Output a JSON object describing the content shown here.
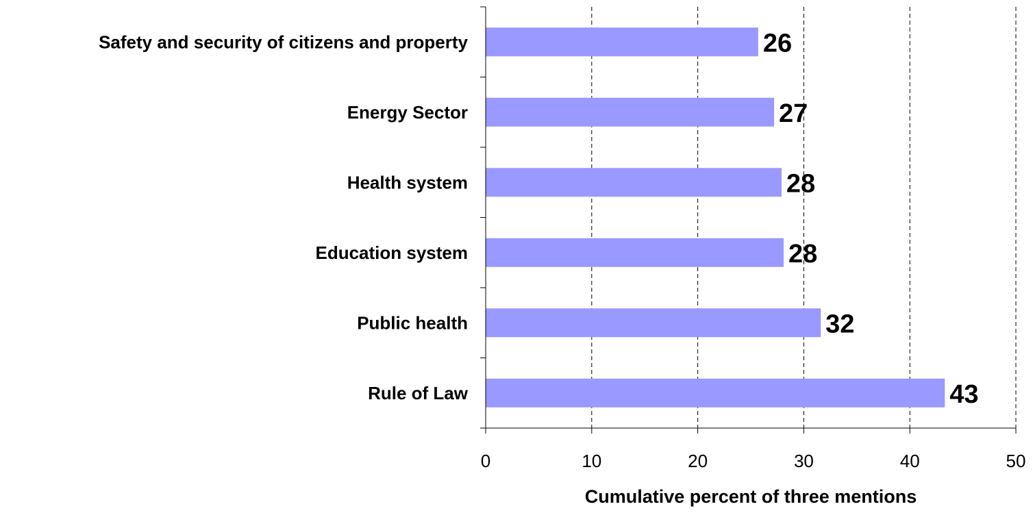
{
  "chart_data": {
    "type": "bar",
    "orientation": "horizontal",
    "categories": [
      "Safety and security of citizens and property",
      "Energy Sector",
      "Health system",
      "Education system",
      "Public health",
      "Rule of Law"
    ],
    "values": [
      26,
      27,
      28,
      28,
      32,
      43
    ],
    "data_labels": [
      "26",
      "27",
      "28",
      "28",
      "32",
      "43"
    ],
    "precise_values": [
      25.7,
      27.2,
      27.9,
      28.1,
      31.6,
      43.3
    ],
    "title": "",
    "xlabel": "Cumulative percent of three mentions",
    "ylabel": "",
    "xlim": [
      0,
      50
    ],
    "x_ticks": [
      "0",
      "10",
      "20",
      "30",
      "40",
      "50"
    ],
    "grid": "vertical dashed",
    "legend": "none",
    "bar_color": "#9999ff"
  }
}
